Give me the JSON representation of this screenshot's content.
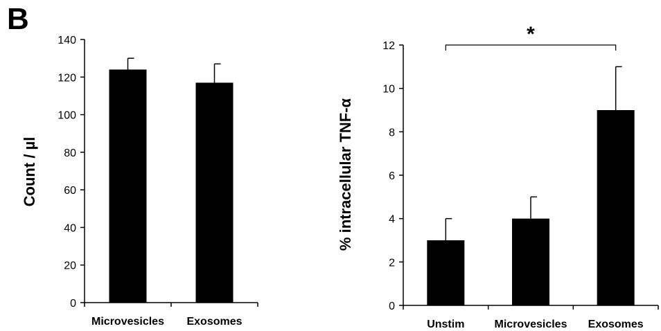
{
  "panel_label": "B",
  "chart_data": [
    {
      "type": "bar",
      "categories": [
        "Microvesicles",
        "Exosomes"
      ],
      "values": [
        124,
        117
      ],
      "errors": [
        6,
        10
      ],
      "ylabel": "Count / µl",
      "xlabel": "",
      "title": "",
      "ylim": [
        0,
        140
      ],
      "yticks": [
        0,
        20,
        40,
        60,
        80,
        100,
        120,
        140
      ],
      "bar_color": "#000000",
      "grid": false
    },
    {
      "type": "bar",
      "categories": [
        "Unstim",
        "Microvesicles",
        "Exosomes"
      ],
      "values": [
        3,
        4,
        9
      ],
      "errors": [
        1,
        1,
        2
      ],
      "ylabel": "% intracellular TNF-α",
      "xlabel": "",
      "title": "",
      "ylim": [
        0,
        12
      ],
      "yticks": [
        0,
        2,
        4,
        6,
        8,
        10,
        12
      ],
      "bar_color": "#000000",
      "grid": false,
      "significance": {
        "from": 0,
        "to": 2,
        "label": "*"
      }
    }
  ]
}
